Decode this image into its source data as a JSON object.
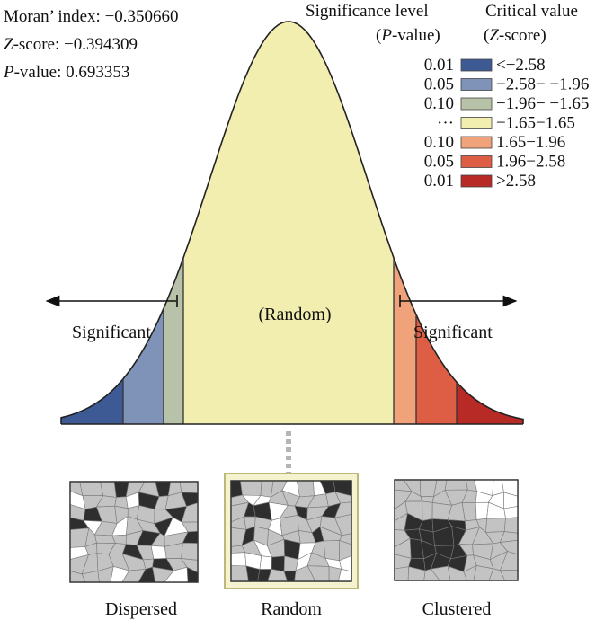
{
  "stats": {
    "moran_label": "Moran’ index: ",
    "moran_value": "−0.350660",
    "z_label_italic": "Z",
    "z_label_rest": "-score: ",
    "z_value": "−0.394309",
    "p_label_italic": "P",
    "p_label_rest": "-value: ",
    "p_value": "0.693353"
  },
  "legend": {
    "header_significance": "Significance level",
    "header_significance_sub_open": "(",
    "header_significance_sub_italic": "P",
    "header_significance_sub_rest": "-value)",
    "header_critical": "Critical value",
    "header_critical_sub_open": "(",
    "header_critical_sub_italic": "Z",
    "header_critical_sub_rest": "-score)",
    "rows": [
      {
        "p": "0.01",
        "range": "<−2.58",
        "color": "#3d5a94"
      },
      {
        "p": "0.05",
        "range": "−2.58− −1.96",
        "color": "#7f92b8"
      },
      {
        "p": "0.10",
        "range": "−1.96− −1.65",
        "color": "#b8c2a8"
      },
      {
        "p": "···",
        "range": "−1.65−1.65",
        "color": "#f2eeb0"
      },
      {
        "p": "0.10",
        "range": "1.65−1.96",
        "color": "#f0a27a"
      },
      {
        "p": "0.05",
        "range": "1.96−2.58",
        "color": "#dd5e45"
      },
      {
        "p": "0.01",
        "range": ">2.58",
        "color": "#b82a25"
      }
    ]
  },
  "curve": {
    "center_label": "(Random)",
    "left_label": "Significant",
    "right_label": "Significant"
  },
  "maps": [
    {
      "label": "Dispersed"
    },
    {
      "label": "Random"
    },
    {
      "label": "Clustered"
    }
  ]
}
